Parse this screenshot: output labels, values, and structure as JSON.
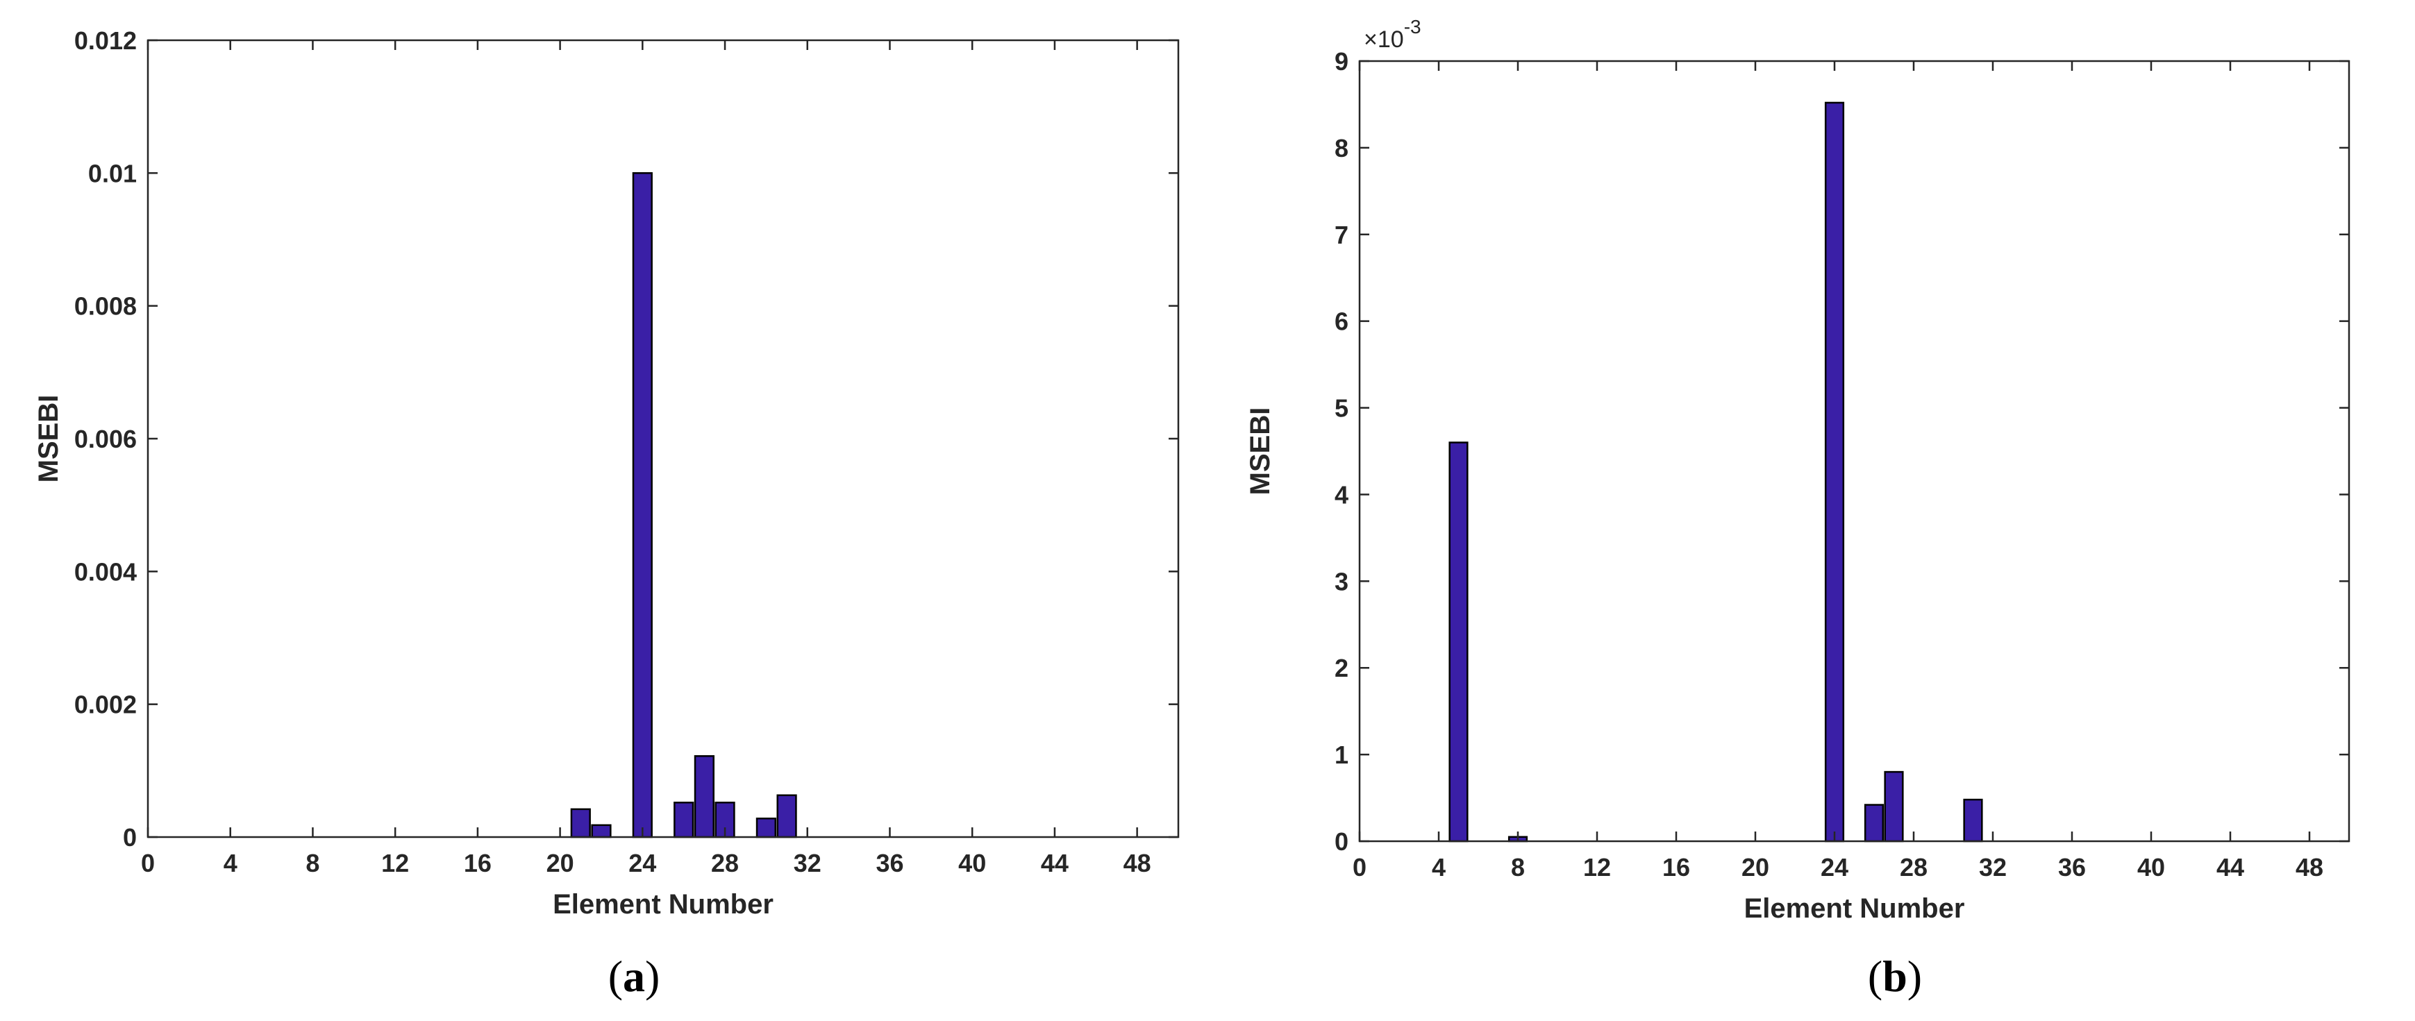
{
  "colors": {
    "bar_fill": "#3a1fa6",
    "bar_stroke": "#000000",
    "axis": "#262626"
  },
  "chart_data": [
    {
      "type": "bar",
      "panel_label": "a",
      "xlabel": "Element Number",
      "ylabel": "MSEBI",
      "xlim": [
        0,
        50
      ],
      "ylim": [
        0,
        0.012
      ],
      "xticks": [
        0,
        4,
        8,
        12,
        16,
        20,
        24,
        28,
        32,
        36,
        40,
        44,
        48
      ],
      "yticks": [
        0,
        0.002,
        0.004,
        0.006,
        0.008,
        0.01,
        0.012
      ],
      "ytick_labels": [
        "0",
        "0.002",
        "0.004",
        "0.006",
        "0.008",
        "0.01",
        "0.012"
      ],
      "y_exponent_label": "",
      "categories": [
        21,
        22,
        24,
        26,
        27,
        28,
        30,
        31
      ],
      "values": [
        0.00042,
        0.00018,
        0.01,
        0.00052,
        0.00122,
        0.00052,
        0.00028,
        0.00063
      ]
    },
    {
      "type": "bar",
      "panel_label": "b",
      "xlabel": "Element Number",
      "ylabel": "MSEBI",
      "xlim": [
        0,
        50
      ],
      "ylim": [
        0,
        9
      ],
      "xticks": [
        0,
        4,
        8,
        12,
        16,
        20,
        24,
        28,
        32,
        36,
        40,
        44,
        48
      ],
      "yticks": [
        0,
        1,
        2,
        3,
        4,
        5,
        6,
        7,
        8,
        9
      ],
      "ytick_labels": [
        "0",
        "1",
        "2",
        "3",
        "4",
        "5",
        "6",
        "7",
        "8",
        "9"
      ],
      "y_exponent_label": "×10",
      "y_exponent_power": "-3",
      "categories": [
        5,
        8,
        24,
        26,
        27,
        31
      ],
      "values": [
        4.6,
        0.05,
        8.52,
        0.42,
        0.8,
        0.48
      ]
    }
  ]
}
